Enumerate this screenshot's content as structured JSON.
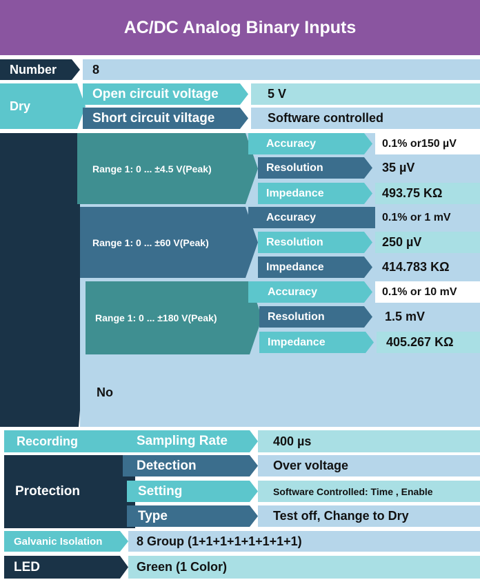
{
  "title": "AC/DC Analog Binary Inputs",
  "colors": {
    "header": "#8a55a0",
    "dark": "#1a3347",
    "blue": "#3b6e8d",
    "teal": "#5cc6cc",
    "teal_dark": "#3f8f91",
    "light": "#b6d6ea",
    "aqua": "#a9dfe4"
  },
  "number": {
    "label": "Number",
    "value": "8"
  },
  "dry": {
    "label": "Dry",
    "open_circuit": {
      "label": "Open circuit voltage",
      "value": "5 V"
    },
    "short_circuit": {
      "label": "Short circuit viltage",
      "value": "Software controlled"
    }
  },
  "ranges": [
    {
      "label": "Range 1: 0 ... ±4.5 V(Peak)",
      "accuracy": {
        "label": "Accuracy",
        "value": "0.1% or150 µV"
      },
      "resolution": {
        "label": "Resolution",
        "value": "35 µV"
      },
      "impedance": {
        "label": "Impedance",
        "value": "493.75 KΩ"
      }
    },
    {
      "label": "Range 1: 0 ... ±60 V(Peak)",
      "accuracy": {
        "label": "Accuracy",
        "value": "0.1% or 1 mV"
      },
      "resolution": {
        "label": "Resolution",
        "value": "250 µV"
      },
      "impedance": {
        "label": "Impedance",
        "value": "414.783 KΩ"
      }
    },
    {
      "label": "Range 1: 0 ... ±180 V(Peak)",
      "accuracy": {
        "label": "Accuracy",
        "value": "0.1% or 10 mV"
      },
      "resolution": {
        "label": "Resolution",
        "value": "1.5 mV"
      },
      "impedance": {
        "label": "Impedance",
        "value": "405.267 KΩ"
      }
    }
  ],
  "no_value": "No",
  "recording": {
    "label": "Recording",
    "sampling_rate": {
      "label": "Sampling Rate",
      "value": "400 µs"
    }
  },
  "protection": {
    "label": "Protection",
    "detection": {
      "label": "Detection",
      "value": "Over voltage"
    },
    "setting": {
      "label": "Setting",
      "value": "Software Controlled: Time , Enable"
    },
    "type": {
      "label": "Type",
      "value": "Test off, Change to Dry"
    }
  },
  "galvanic": {
    "label": "Galvanic Isolation",
    "value": "8 Group (1+1+1+1+1+1+1+1)"
  },
  "led": {
    "label": "LED",
    "value": "Green (1 Color)"
  }
}
